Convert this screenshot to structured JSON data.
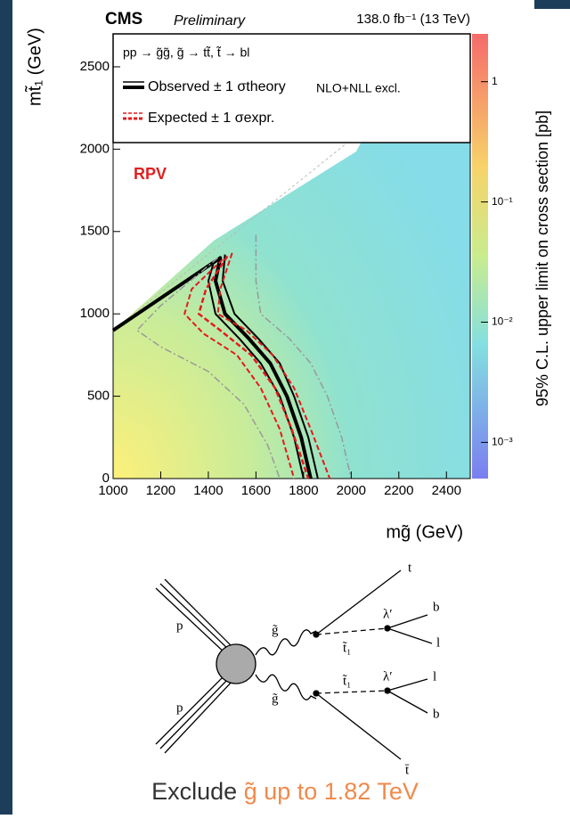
{
  "chart_data": {
    "type": "contour",
    "title": "CMS",
    "subtitle": "Preliminary",
    "luminosity": "138.0 fb⁻¹ (13 TeV)",
    "x_label": "mg̃ (GeV)",
    "y_label": "mt̃₁ (GeV)",
    "z_label": "95% C.L. upper limit on cross section [pb]",
    "annotation": "RPV",
    "legend": {
      "process": "pp → g̃g̃, g̃ → tt̃, t̃ → bl",
      "observed": "Observed ± 1 σtheory",
      "expected": "Expected ± 1 σexpr.",
      "note": "NLO+NLL excl."
    },
    "xlim": [
      1000,
      2500
    ],
    "xticks": [
      1000,
      1200,
      1400,
      1600,
      1800,
      2000,
      2200,
      2400
    ],
    "ylim": [
      0,
      2700
    ],
    "yticks": [
      0,
      500,
      1000,
      1500,
      2000,
      2500
    ],
    "zlim": [
      0.0005,
      2.5
    ],
    "zscale": "log",
    "zticks": [
      {
        "value": 1,
        "label": "1"
      },
      {
        "value": 0.1,
        "label": "10⁻¹"
      },
      {
        "value": 0.01,
        "label": "10⁻²"
      },
      {
        "value": 0.001,
        "label": "10⁻³"
      }
    ],
    "series": [
      {
        "color": "#000000",
        "width": 4,
        "dash": "none",
        "x": [
          1000,
          1450,
          1430,
          1470,
          1570,
          1660,
          1730,
          1790,
          1830
        ],
        "values": [
          900,
          1340,
          1200,
          1000,
          850,
          700,
          500,
          250,
          0
        ]
      },
      {
        "color": "#000000",
        "width": 2,
        "dash": "none",
        "x": [
          1420,
          1400,
          1430,
          1530,
          1620,
          1700,
          1760,
          1800
        ],
        "values": [
          1300,
          1200,
          1000,
          850,
          700,
          500,
          250,
          0
        ]
      },
      {
        "color": "#000000",
        "width": 2,
        "dash": "none",
        "x": [
          1470,
          1460,
          1510,
          1610,
          1700,
          1760,
          1820,
          1860
        ],
        "values": [
          1360,
          1200,
          1000,
          850,
          700,
          500,
          250,
          0
        ]
      },
      {
        "color": "#e41a1c",
        "width": 2.5,
        "dash": "6 3",
        "x": [
          1480,
          1390,
          1360,
          1450,
          1580,
          1680,
          1750,
          1820
        ],
        "values": [
          1350,
          1150,
          1000,
          900,
          750,
          550,
          300,
          0
        ]
      },
      {
        "color": "#e41a1c",
        "width": 2,
        "dash": "6 3",
        "x": [
          1460,
          1330,
          1300,
          1380,
          1520,
          1620,
          1700,
          1760
        ],
        "values": [
          1330,
          1150,
          1000,
          880,
          750,
          550,
          300,
          0
        ]
      },
      {
        "color": "#e41a1c",
        "width": 2,
        "dash": "6 3",
        "x": [
          1500,
          1450,
          1440,
          1560,
          1670,
          1760,
          1830,
          1910
        ],
        "values": [
          1370,
          1150,
          1000,
          900,
          750,
          550,
          300,
          0
        ]
      },
      {
        "color": "#999999",
        "width": 1.5,
        "dash": "8 3 2 3",
        "x": [
          1440,
          1200,
          1100,
          1200,
          1400,
          1550,
          1650,
          1700
        ],
        "values": [
          1340,
          1050,
          900,
          800,
          650,
          450,
          200,
          0
        ]
      },
      {
        "color": "#999999",
        "width": 1.5,
        "dash": "8 3 2 3",
        "x": [
          1600,
          1600,
          1620,
          1740,
          1830,
          1900,
          1960,
          2000
        ],
        "values": [
          1480,
          1200,
          1000,
          850,
          700,
          500,
          250,
          0
        ]
      }
    ]
  },
  "diagram": {
    "labels": [
      "p",
      "p",
      "g̃",
      "g̃",
      "t̃₁",
      "t̃₁",
      "λ′",
      "λ′",
      "t",
      "b",
      "l",
      "l",
      "b",
      "t̄"
    ]
  },
  "caption": {
    "prefix": "Exclude ",
    "highlight": "g̃ up to 1.82 TeV"
  }
}
